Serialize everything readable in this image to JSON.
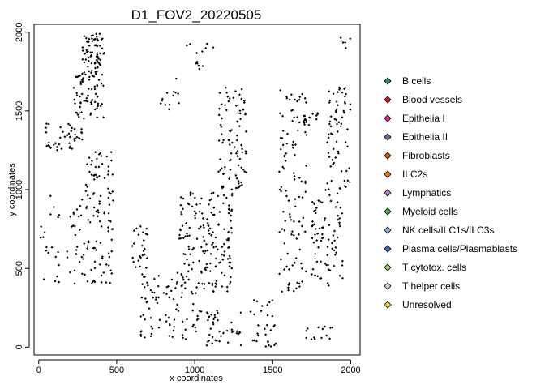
{
  "chart_data": {
    "type": "scatter",
    "title": "D1_FOV2_20220505",
    "xlabel": "x coordinates",
    "ylabel": "y coordinates",
    "xlim": [
      -30,
      2060
    ],
    "ylim": [
      -50,
      2050
    ],
    "x_ticks": [
      0,
      500,
      1000,
      1500,
      2000
    ],
    "y_ticks": [
      0,
      500,
      1000,
      1500,
      2000
    ],
    "grid": false,
    "legend_position": "right",
    "point_color": "#000000",
    "legend": [
      {
        "label": "B cells",
        "color": "#2f8f6f"
      },
      {
        "label": "Blood vessels",
        "color": "#e41a1c"
      },
      {
        "label": "Epithelia I",
        "color": "#e7298a"
      },
      {
        "label": "Epithelia II",
        "color": "#7b6a9e"
      },
      {
        "label": "Fibroblasts",
        "color": "#d95f02"
      },
      {
        "label": "ILC2s",
        "color": "#ff7f00"
      },
      {
        "label": "Lymphatics",
        "color": "#b07fd6"
      },
      {
        "label": "Myeloid cells",
        "color": "#4daf4a"
      },
      {
        "label": "NK cells/ILC1s/ILC3s",
        "color": "#8ab4d8"
      },
      {
        "label": "Plasma cells/Plasmablasts",
        "color": "#3a6fb0"
      },
      {
        "label": "T cytotox. cells",
        "color": "#9ccf5a"
      },
      {
        "label": "T helper cells",
        "color": "#d4cfe0"
      },
      {
        "label": "Unresolved",
        "color": "#ffd92f"
      }
    ],
    "clusters": [
      {
        "x": [
          280,
          420
        ],
        "y": [
          1750,
          1990
        ],
        "n": 70
      },
      {
        "x": [
          220,
          420
        ],
        "y": [
          1450,
          1750
        ],
        "n": 70
      },
      {
        "x": [
          40,
          280
        ],
        "y": [
          1250,
          1420
        ],
        "n": 45
      },
      {
        "x": [
          300,
          480
        ],
        "y": [
          950,
          1250
        ],
        "n": 40
      },
      {
        "x": [
          180,
          480
        ],
        "y": [
          400,
          950
        ],
        "n": 90
      },
      {
        "x": [
          0,
          140
        ],
        "y": [
          380,
          980
        ],
        "n": 20
      },
      {
        "x": [
          600,
          700
        ],
        "y": [
          500,
          800
        ],
        "n": 25
      },
      {
        "x": [
          650,
          1050
        ],
        "y": [
          50,
          500
        ],
        "n": 90
      },
      {
        "x": [
          900,
          1250
        ],
        "y": [
          350,
          1000
        ],
        "n": 170
      },
      {
        "x": [
          1150,
          1330
        ],
        "y": [
          1000,
          1650
        ],
        "n": 90
      },
      {
        "x": [
          780,
          900
        ],
        "y": [
          1500,
          1650
        ],
        "n": 12
      },
      {
        "x": [
          880,
          1120
        ],
        "y": [
          1700,
          1950
        ],
        "n": 14
      },
      {
        "x": [
          1050,
          1300
        ],
        "y": [
          10,
          250
        ],
        "n": 40
      },
      {
        "x": [
          1350,
          1530
        ],
        "y": [
          0,
          300
        ],
        "n": 30
      },
      {
        "x": [
          1540,
          1720
        ],
        "y": [
          350,
          1650
        ],
        "n": 110
      },
      {
        "x": [
          1680,
          1800
        ],
        "y": [
          1400,
          1500
        ],
        "n": 12
      },
      {
        "x": [
          1750,
          1950
        ],
        "y": [
          380,
          1000
        ],
        "n": 80
      },
      {
        "x": [
          1850,
          2000
        ],
        "y": [
          1000,
          1650
        ],
        "n": 70
      },
      {
        "x": [
          1700,
          1900
        ],
        "y": [
          40,
          130
        ],
        "n": 14
      },
      {
        "x": [
          1930,
          2000
        ],
        "y": [
          1860,
          1980
        ],
        "n": 6
      }
    ]
  }
}
